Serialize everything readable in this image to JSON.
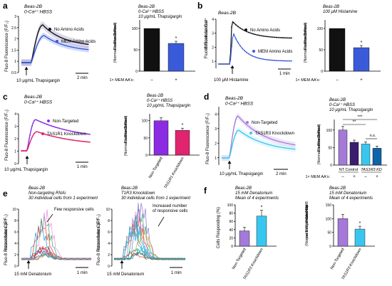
{
  "panel_a": {
    "letter": "a",
    "trace_title": [
      "Beas-2B",
      "0-Ca²⁺ HBSS"
    ],
    "ylabel": "Fluo-8 Fluorescence (F/F₀)",
    "legend": [
      "No Amino Acids",
      "MEM Amino Acids"
    ],
    "stimulus": "10 μg/mL Thapsigargin",
    "scalebar": "2 min",
    "bar_title": [
      "Beas-2B",
      "0-Ca²⁺ HBSS",
      "10 μg/mL Thapsigargin"
    ],
    "bar_ylabel": [
      "Fluo-8 Peak",
      "Fluorescence",
      "(Normalized to Control)"
    ],
    "x_row_label": "1× MEM AA's:",
    "x_row_values": [
      "–",
      "+"
    ],
    "star": "*",
    "colors": {
      "control": "#111111",
      "treated": "#3a5bd9"
    }
  },
  "panel_b": {
    "letter": "b",
    "trace_title": [
      "Beas-2B"
    ],
    "ylabel": [
      "Intracellular Ca²⁺",
      "Fluo-8 Fluorescence"
    ],
    "legend": [
      "No Amino Acids",
      "MEM Amino Acids"
    ],
    "stimulus": "100 μM Histamine",
    "scalebar": "1 min",
    "bar_title": [
      "Beas-2B",
      "100 μM Histamine"
    ],
    "bar_ylabel": [
      "Fluo-8 Peak",
      "Fluorescence",
      "(Normalized to Control)"
    ],
    "x_row_label": "1× MEM AA's:",
    "x_row_values": [
      "–",
      "+"
    ],
    "star": "*"
  },
  "panel_c": {
    "letter": "c",
    "trace_title": [
      "Beas-2B",
      "0-Ca²⁺ HBSS"
    ],
    "ylabel": "Fluo-8 Fluorescence (F/F₀)",
    "legend": [
      "Non-Targeted",
      "TAS1R1 Knockdown"
    ],
    "stimulus": "10 μg/mL Thapsigargin",
    "scalebar": "1 min",
    "bar_title": [
      "Beas-2B",
      "0-Ca²⁺ HBSS",
      "10 μg/mL Thapsigargin"
    ],
    "bar_ylabel": [
      "Fluo-8 Peak",
      "Fluorescence",
      "(Normalized to Control)"
    ],
    "categories": [
      "Non-Targeted",
      "TAS1R1 Knockdown"
    ],
    "star": "*",
    "colors": {
      "control": "#8b2be2",
      "treated": "#e0246e"
    }
  },
  "panel_d": {
    "letter": "d",
    "trace_title": [
      "Beas-2B",
      "0-Ca²⁺ HBSS"
    ],
    "ylabel": "Fluo-8 Fluorescence (F/F₀)",
    "legend": [
      "Non-Targeted",
      "TAS1R3 Knockdown"
    ],
    "stimulus": "10 μg/mL Thapsigargin",
    "scalebar": "2 min",
    "bar_title": [
      "Beas-2B",
      "0-Ca²⁺ HBSS",
      "10 μg/mL Thapsigargin"
    ],
    "bar_ylabel": [
      "Fluo-8 Peak",
      "Fluorescence",
      "(Normalized to Control)"
    ],
    "group_labels": [
      "NT Control",
      "TAS1R3 KD"
    ],
    "x_row_label": "1× MEM AA's:",
    "x_row_values": [
      "–",
      "+",
      "–",
      "+"
    ],
    "sig": [
      "***",
      "**",
      "n.s."
    ],
    "colors": {
      "control": "#a479d8",
      "treated": "#39c6ee"
    }
  },
  "panel_e": {
    "letter": "e",
    "left_title": [
      "Beas-2B",
      "Non-targeting RNAi",
      "30 individual cells from 1 experiment"
    ],
    "right_title": [
      "Beas-2B",
      "T1R3 Knockdown",
      "30 individual cells from 1 experiment"
    ],
    "ylabel": [
      "Intracellular Ca²⁺",
      "Fluo-8 Fluorescence (F/F₀)"
    ],
    "left_annotation": "Few responsive cells",
    "right_annotation": [
      "Increased number",
      "of responsive cells"
    ],
    "stimulus": "15 mM Denatonium",
    "scalebar": "1 min"
  },
  "panel_f": {
    "letter": "f",
    "left_title": [
      "Beas-2B",
      "15 mM Denatonium",
      "Mean of 4 experiments"
    ],
    "right_title": [
      "Beas-2B",
      "15 mM Denatonium",
      "Mean of 4 experiments"
    ],
    "left_ylabel": "Cells Responding (%)",
    "right_ylabel": [
      "Peak Fluo-8",
      "Fluorescence",
      "per Responsive Cell",
      "(Normalized to Control)"
    ],
    "categories": [
      "Non-Targeted",
      "TAS1R3 Knockdown"
    ],
    "stars": [
      "*",
      "*"
    ],
    "colors": {
      "control": "#a479d8",
      "treated": "#39c6ee"
    }
  },
  "chart_data": [
    {
      "type": "bar",
      "panel": "a",
      "categories": [
        "–",
        "+"
      ],
      "series": [
        {
          "values": [
            100,
            65
          ]
        }
      ],
      "ylim": [
        0,
        120
      ],
      "yticks": [
        0,
        50,
        100
      ]
    },
    {
      "type": "bar",
      "panel": "b",
      "categories": [
        "–",
        "+"
      ],
      "series": [
        {
          "values": [
            100,
            55
          ]
        }
      ],
      "ylim": [
        0,
        120
      ],
      "yticks": [
        0,
        50,
        100
      ]
    },
    {
      "type": "bar",
      "panel": "c",
      "categories": [
        "Non-Targeted",
        "TAS1R1 Knockdown"
      ],
      "series": [
        {
          "values": [
            100,
            72
          ]
        }
      ],
      "ylim": [
        0,
        120
      ],
      "yticks": [
        0,
        50,
        100
      ]
    },
    {
      "type": "bar",
      "panel": "d",
      "categories": [
        "NT Control –",
        "NT Control +",
        "TAS1R3 KD –",
        "TAS1R3 KD +"
      ],
      "series": [
        {
          "values": [
            100,
            65,
            60,
            48
          ]
        }
      ],
      "ylim": [
        0,
        130
      ],
      "yticks": [
        0,
        50,
        100
      ]
    },
    {
      "type": "bar",
      "panel": "f-left",
      "categories": [
        "Non-Targeted",
        "TAS1R3 Knockdown"
      ],
      "series": [
        {
          "values": [
            37,
            73
          ]
        }
      ],
      "ylim": [
        0,
        100
      ],
      "yticks": [
        0,
        20,
        40,
        60,
        80,
        100
      ]
    },
    {
      "type": "bar",
      "panel": "f-right",
      "categories": [
        "Non-Targeted",
        "TAS1R3 Knockdown"
      ],
      "series": [
        {
          "values": [
            100,
            62
          ]
        }
      ],
      "ylim": [
        0,
        150
      ],
      "yticks": [
        0,
        50,
        100,
        150
      ]
    },
    {
      "type": "line",
      "panel": "a-traces",
      "ylim": [
        0.5,
        3.0
      ],
      "yticks": [
        0.5,
        1.0,
        1.5,
        2.0,
        2.5,
        3.0
      ]
    },
    {
      "type": "line",
      "panel": "b-traces",
      "ylim": [
        0.5,
        4
      ],
      "yticks": [
        1,
        2,
        3,
        4
      ]
    },
    {
      "type": "line",
      "panel": "c-traces",
      "ylim": [
        0,
        4
      ],
      "yticks": [
        0,
        1,
        2,
        3,
        4
      ]
    },
    {
      "type": "line",
      "panel": "d-traces",
      "ylim": [
        0.5,
        4.5
      ],
      "yticks": [
        1,
        2,
        3,
        4
      ]
    },
    {
      "type": "line",
      "panel": "e-traces",
      "ylim": [
        0,
        10
      ],
      "yticks": [
        0,
        2,
        4,
        6,
        8,
        10
      ]
    }
  ]
}
